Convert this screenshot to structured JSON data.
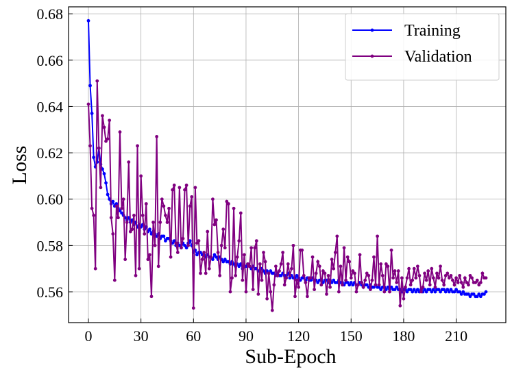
{
  "chart_data": {
    "type": "line",
    "x_label": "Sub-Epoch",
    "y_label": "Loss",
    "x": [
      0,
      1,
      2,
      3,
      4,
      5,
      6,
      7,
      8,
      9,
      10,
      11,
      12,
      13,
      14,
      15,
      16,
      17,
      18,
      19,
      20,
      21,
      22,
      23,
      24,
      25,
      26,
      27,
      28,
      29,
      30,
      31,
      32,
      33,
      34,
      35,
      36,
      37,
      38,
      39,
      40,
      41,
      42,
      43,
      44,
      45,
      46,
      47,
      48,
      49,
      50,
      51,
      52,
      53,
      54,
      55,
      56,
      57,
      58,
      59,
      60,
      61,
      62,
      63,
      64,
      65,
      66,
      67,
      68,
      69,
      70,
      71,
      72,
      73,
      74,
      75,
      76,
      77,
      78,
      79,
      80,
      81,
      82,
      83,
      84,
      85,
      86,
      87,
      88,
      89,
      90,
      91,
      92,
      93,
      94,
      95,
      96,
      97,
      98,
      99,
      100,
      101,
      102,
      103,
      104,
      105,
      106,
      107,
      108,
      109,
      110,
      111,
      112,
      113,
      114,
      115,
      116,
      117,
      118,
      119,
      120,
      121,
      122,
      123,
      124,
      125,
      126,
      127,
      128,
      129,
      130,
      131,
      132,
      133,
      134,
      135,
      136,
      137,
      138,
      139,
      140,
      141,
      142,
      143,
      144,
      145,
      146,
      147,
      148,
      149,
      150,
      151,
      152,
      153,
      154,
      155,
      156,
      157,
      158,
      159,
      160,
      161,
      162,
      163,
      164,
      165,
      166,
      167,
      168,
      169,
      170,
      171,
      172,
      173,
      174,
      175,
      176,
      177,
      178,
      179,
      180,
      181,
      182,
      183,
      184,
      185,
      186,
      187,
      188,
      189,
      190,
      191,
      192,
      193,
      194,
      195,
      196,
      197,
      198,
      199,
      200,
      201,
      202,
      203,
      204,
      205,
      206,
      207,
      208,
      209,
      210,
      211,
      212,
      213,
      214,
      215,
      216,
      217,
      218,
      219,
      220,
      221,
      222,
      223,
      224,
      225,
      226,
      227
    ],
    "series": [
      {
        "name": "Training",
        "color": "#0000ff",
        "values": [
          0.677,
          0.649,
          0.637,
          0.618,
          0.614,
          0.616,
          0.622,
          0.615,
          0.613,
          0.611,
          0.607,
          0.602,
          0.6,
          0.598,
          0.599,
          0.597,
          0.598,
          0.596,
          0.595,
          0.594,
          0.593,
          0.592,
          0.591,
          0.592,
          0.59,
          0.591,
          0.589,
          0.59,
          0.588,
          0.589,
          0.588,
          0.589,
          0.587,
          0.588,
          0.586,
          0.587,
          0.585,
          0.586,
          0.585,
          0.584,
          0.585,
          0.583,
          0.584,
          0.584,
          0.582,
          0.583,
          0.583,
          0.582,
          0.581,
          0.582,
          0.58,
          0.581,
          0.58,
          0.579,
          0.581,
          0.58,
          0.579,
          0.581,
          0.582,
          0.58,
          0.577,
          0.578,
          0.576,
          0.577,
          0.577,
          0.576,
          0.576,
          0.575,
          0.576,
          0.575,
          0.575,
          0.574,
          0.576,
          0.575,
          0.574,
          0.575,
          0.574,
          0.573,
          0.574,
          0.573,
          0.573,
          0.572,
          0.573,
          0.572,
          0.571,
          0.572,
          0.571,
          0.572,
          0.57,
          0.571,
          0.571,
          0.572,
          0.571,
          0.57,
          0.571,
          0.57,
          0.57,
          0.569,
          0.569,
          0.57,
          0.569,
          0.568,
          0.569,
          0.568,
          0.569,
          0.568,
          0.568,
          0.567,
          0.568,
          0.567,
          0.567,
          0.568,
          0.567,
          0.567,
          0.568,
          0.566,
          0.567,
          0.566,
          0.566,
          0.567,
          0.566,
          0.565,
          0.566,
          0.566,
          0.565,
          0.566,
          0.565,
          0.565,
          0.566,
          0.565,
          0.565,
          0.564,
          0.565,
          0.565,
          0.564,
          0.565,
          0.565,
          0.564,
          0.565,
          0.564,
          0.565,
          0.564,
          0.564,
          0.565,
          0.564,
          0.564,
          0.563,
          0.564,
          0.564,
          0.563,
          0.564,
          0.563,
          0.564,
          0.563,
          0.563,
          0.564,
          0.563,
          0.562,
          0.563,
          0.563,
          0.562,
          0.563,
          0.562,
          0.562,
          0.563,
          0.562,
          0.562,
          0.561,
          0.562,
          0.562,
          0.561,
          0.562,
          0.561,
          0.562,
          0.561,
          0.561,
          0.562,
          0.561,
          0.561,
          0.56,
          0.561,
          0.561,
          0.56,
          0.561,
          0.561,
          0.56,
          0.561,
          0.56,
          0.561,
          0.56,
          0.561,
          0.56,
          0.561,
          0.56,
          0.561,
          0.561,
          0.56,
          0.561,
          0.56,
          0.561,
          0.561,
          0.56,
          0.561,
          0.561,
          0.56,
          0.561,
          0.56,
          0.561,
          0.56,
          0.56,
          0.561,
          0.56,
          0.56,
          0.559,
          0.56,
          0.559,
          0.559,
          0.559,
          0.558,
          0.559,
          0.559,
          0.558,
          0.558,
          0.559,
          0.558,
          0.559,
          0.559,
          0.56
        ]
      },
      {
        "name": "Validation",
        "color": "#800080",
        "values": [
          0.641,
          0.623,
          0.596,
          0.593,
          0.57,
          0.651,
          0.622,
          0.605,
          0.636,
          0.631,
          0.625,
          0.626,
          0.634,
          0.592,
          0.585,
          0.565,
          0.597,
          0.592,
          0.629,
          0.596,
          0.6,
          0.574,
          0.59,
          0.616,
          0.586,
          0.587,
          0.593,
          0.567,
          0.623,
          0.57,
          0.61,
          0.593,
          0.585,
          0.598,
          0.574,
          0.576,
          0.558,
          0.59,
          0.58,
          0.627,
          0.571,
          0.59,
          0.6,
          0.597,
          0.593,
          0.59,
          0.596,
          0.575,
          0.604,
          0.606,
          0.581,
          0.577,
          0.605,
          0.579,
          0.583,
          0.604,
          0.606,
          0.58,
          0.597,
          0.601,
          0.553,
          0.605,
          0.581,
          0.582,
          0.568,
          0.574,
          0.577,
          0.568,
          0.586,
          0.57,
          0.575,
          0.6,
          0.589,
          0.591,
          0.577,
          0.567,
          0.58,
          0.587,
          0.579,
          0.599,
          0.598,
          0.56,
          0.566,
          0.596,
          0.567,
          0.575,
          0.582,
          0.594,
          0.565,
          0.576,
          0.56,
          0.572,
          0.571,
          0.579,
          0.561,
          0.579,
          0.582,
          0.559,
          0.572,
          0.565,
          0.577,
          0.573,
          0.557,
          0.568,
          0.56,
          0.552,
          0.563,
          0.571,
          0.567,
          0.569,
          0.572,
          0.577,
          0.563,
          0.566,
          0.572,
          0.567,
          0.57,
          0.58,
          0.558,
          0.565,
          0.562,
          0.578,
          0.578,
          0.567,
          0.564,
          0.558,
          0.566,
          0.566,
          0.575,
          0.561,
          0.568,
          0.573,
          0.571,
          0.563,
          0.569,
          0.568,
          0.559,
          0.567,
          0.562,
          0.574,
          0.57,
          0.577,
          0.584,
          0.56,
          0.571,
          0.563,
          0.579,
          0.565,
          0.575,
          0.573,
          0.566,
          0.569,
          0.568,
          0.56,
          0.563,
          0.576,
          0.564,
          0.562,
          0.565,
          0.568,
          0.567,
          0.561,
          0.565,
          0.575,
          0.563,
          0.584,
          0.563,
          0.572,
          0.567,
          0.56,
          0.572,
          0.571,
          0.56,
          0.578,
          0.566,
          0.569,
          0.564,
          0.569,
          0.554,
          0.566,
          0.557,
          0.562,
          0.566,
          0.57,
          0.563,
          0.565,
          0.57,
          0.566,
          0.571,
          0.567,
          0.56,
          0.562,
          0.568,
          0.565,
          0.569,
          0.563,
          0.57,
          0.566,
          0.562,
          0.568,
          0.566,
          0.571,
          0.565,
          0.563,
          0.567,
          0.568,
          0.566,
          0.567,
          0.565,
          0.563,
          0.566,
          0.564,
          0.567,
          0.564,
          0.562,
          0.566,
          0.564,
          0.563,
          0.567,
          0.566,
          0.564,
          0.564,
          0.565,
          0.563,
          0.564,
          0.568,
          0.566,
          0.566
        ]
      }
    ],
    "xlim": [
      -11.35,
      238.35
    ],
    "ylim": [
      0.5467,
      0.683
    ],
    "xticks": [
      0,
      30,
      60,
      90,
      120,
      150,
      180,
      210
    ],
    "yticks": [
      0.56,
      0.58,
      {
        "value": 0.6,
        "label": "0.60"
      },
      0.62,
      0.64,
      0.66,
      0.68
    ],
    "grid": true,
    "legend": "upper right"
  }
}
